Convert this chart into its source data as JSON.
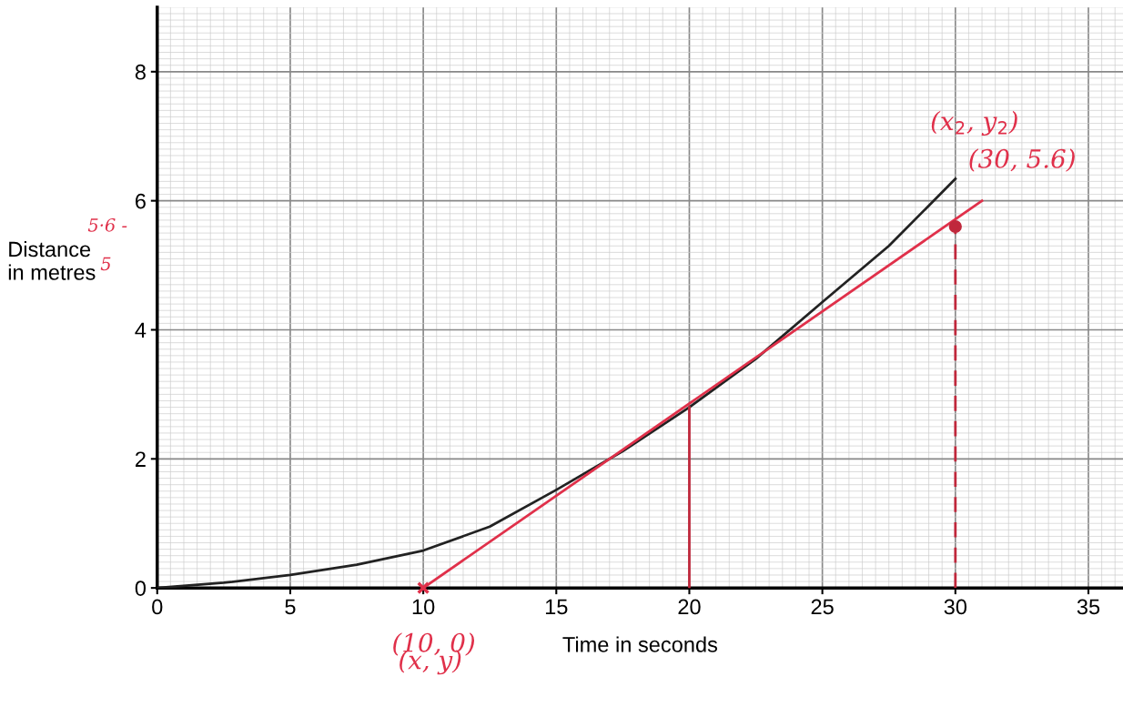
{
  "chart_data": {
    "type": "line",
    "xlabel": "Time in seconds",
    "ylabel": "Distance\nin metres",
    "xlim": [
      0,
      36.3
    ],
    "ylim": [
      0,
      9
    ],
    "xticks": [
      0,
      5,
      10,
      15,
      20,
      25,
      30,
      35
    ],
    "yticks": [
      0,
      2,
      4,
      6,
      8
    ],
    "grid": true,
    "series": [
      {
        "color": "#222222",
        "x": [
          0,
          2.5,
          5,
          7.5,
          10,
          12.5,
          15,
          17.5,
          20,
          22.5,
          25,
          27.5,
          30
        ],
        "values": [
          0,
          0.08,
          0.2,
          0.36,
          0.58,
          0.95,
          1.52,
          2.12,
          2.8,
          3.55,
          4.43,
          5.3,
          6.34
        ]
      },
      {
        "color": "#e0304a",
        "x": [
          10,
          31
        ],
        "values": [
          0,
          6.0
        ]
      },
      {
        "color": "#c0283c",
        "x": [
          20,
          20
        ],
        "values": [
          0,
          2.8
        ]
      },
      {
        "color": "#c0283c",
        "line_style": "dashed",
        "x": [
          30,
          30
        ],
        "values": [
          0,
          5.6
        ]
      },
      {
        "type": "scatter",
        "color": "#e0304a",
        "marker": "cross",
        "x": [
          10
        ],
        "values": [
          0
        ]
      },
      {
        "type": "scatter",
        "color": "#c0283c",
        "marker": "circle",
        "x": [
          30
        ],
        "values": [
          5.6
        ]
      }
    ],
    "annotations": [
      "(x$_{2}$, y$_{2}$)",
      {
        "text": "(30, 5.6)",
        "x": 30,
        "y": 5.6
      },
      {
        "text": "(10, 0)",
        "x": 10,
        "y": 0
      },
      "(x, y)",
      "5·6 -",
      "5"
    ]
  }
}
